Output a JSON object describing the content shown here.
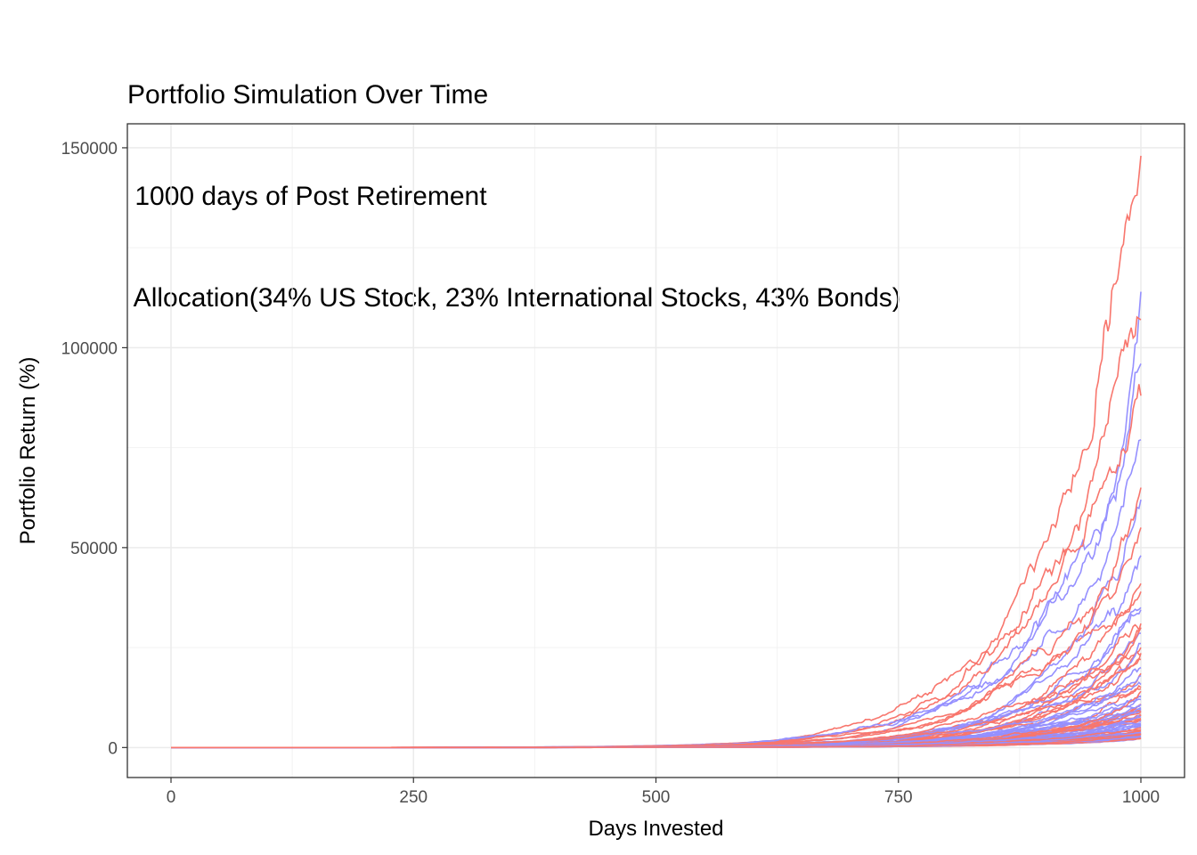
{
  "chart_data": {
    "type": "line",
    "title": "Portfolio Simulation Over Time",
    "subtitle_lines": [
      " 1000 days of Post Retirement",
      " Allocation(34% US Stock, 23% International Stocks, 43% Bonds)"
    ],
    "xlabel": "Days Invested",
    "ylabel": "Portfolio Return (%)",
    "xlim": [
      -45,
      1045
    ],
    "ylim": [
      -7500,
      156000
    ],
    "x_ticks": [
      0,
      250,
      500,
      750,
      1000
    ],
    "y_ticks": [
      0,
      50000,
      100000,
      150000
    ],
    "x_tick_labels": [
      "0",
      "250",
      "500",
      "750",
      "1000"
    ],
    "y_tick_labels": [
      "0",
      "50000",
      "100000",
      "150000"
    ],
    "grid": true,
    "legend": "none",
    "simulations": 100,
    "final_values_sample": [
      148000,
      114000,
      107000,
      96000,
      88000,
      77000,
      65000,
      62000,
      55000,
      48000,
      41000,
      35000,
      30000,
      26000,
      22000,
      18000,
      15000,
      12000,
      9000,
      6000,
      4000,
      2500
    ],
    "palette": [
      "#F8766D",
      "#D89000",
      "#A3A500",
      "#39B600",
      "#00BF7D",
      "#00BFC4",
      "#00B0F6",
      "#9590FF",
      "#E76BF3",
      "#FF62BC",
      "#7CAE00",
      "#00BA38",
      "#619CFF",
      "#F564E3"
    ]
  }
}
